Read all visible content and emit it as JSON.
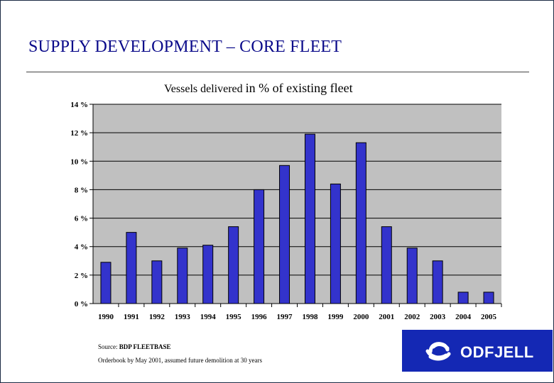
{
  "slide": {
    "title": "SUPPLY DEVELOPMENT – CORE FLEET",
    "source_label": "Source:",
    "source_value": "BDP FLEETBASE",
    "note": "Orderbook by May 2001, assumed future demolition at 30 years",
    "logo_text": "ODFJELL"
  },
  "colors": {
    "title": "#0a0a8a",
    "bar": "#3333cc",
    "plot_bg": "#c0c0c0",
    "logo_bg": "#1428b4"
  },
  "chart_data": {
    "type": "bar",
    "title_part1": "Vessels delivered",
    "title_part2": "in % of existing fleet",
    "categories": [
      "1990",
      "1991",
      "1992",
      "1993",
      "1994",
      "1995",
      "1996",
      "1997",
      "1998",
      "1999",
      "2000",
      "2001",
      "2002",
      "2003",
      "2004",
      "2005"
    ],
    "values": [
      2.9,
      5.0,
      3.0,
      3.9,
      4.1,
      5.4,
      8.0,
      9.7,
      11.9,
      8.4,
      11.3,
      5.4,
      3.9,
      3.0,
      0.8,
      0.8
    ],
    "ylim": [
      0,
      14
    ],
    "yticks": [
      0,
      2,
      4,
      6,
      8,
      10,
      12,
      14
    ],
    "ytick_labels": [
      "0 %",
      "2 %",
      "4 %",
      "6 %",
      "8 %",
      "10 %",
      "12 %",
      "14 %"
    ],
    "xlabel": "",
    "ylabel": "",
    "grid": true
  }
}
